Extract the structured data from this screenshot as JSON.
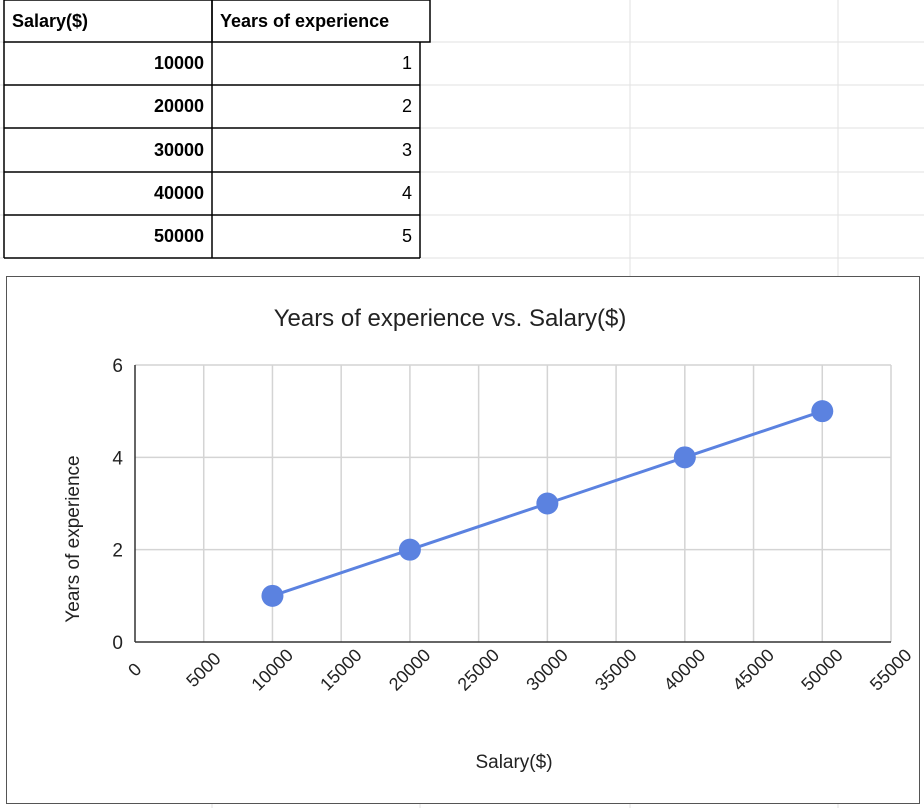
{
  "sheet": {
    "headers": [
      "Salary($)",
      "Years of experience"
    ],
    "rows": [
      [
        "10000",
        "1"
      ],
      [
        "20000",
        "2"
      ],
      [
        "30000",
        "3"
      ],
      [
        "40000",
        "4"
      ],
      [
        "50000",
        "5"
      ]
    ]
  },
  "chart_data": {
    "type": "line",
    "title": "Years of experience vs. Salary($)",
    "xlabel": "Salary($)",
    "ylabel": "Years of experience",
    "x": [
      10000,
      20000,
      30000,
      40000,
      50000
    ],
    "series": [
      {
        "values": [
          1,
          2,
          3,
          4,
          5
        ],
        "color": "#5b82e0"
      }
    ],
    "xlim": [
      0,
      55000
    ],
    "ylim": [
      0,
      6
    ],
    "xticks": [
      "0",
      "5000",
      "10000",
      "15000",
      "20000",
      "25000",
      "30000",
      "35000",
      "40000",
      "45000",
      "50000",
      "55000"
    ],
    "yticks": [
      "0",
      "2",
      "4",
      "6"
    ],
    "grid": true,
    "markers": true
  }
}
